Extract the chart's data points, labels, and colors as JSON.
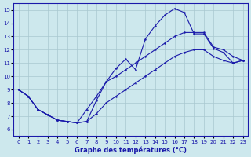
{
  "xlabel": "Graphe des températures (°C)",
  "background_color": "#cde8ed",
  "grid_color": "#a8c8d0",
  "line_color": "#1a1aaa",
  "xlim": [
    -0.5,
    23.5
  ],
  "ylim": [
    5.5,
    15.5
  ],
  "xticks": [
    0,
    1,
    2,
    3,
    4,
    5,
    6,
    7,
    8,
    9,
    10,
    11,
    12,
    13,
    14,
    15,
    16,
    17,
    18,
    19,
    20,
    21,
    22,
    23
  ],
  "yticks": [
    6,
    7,
    8,
    9,
    10,
    11,
    12,
    13,
    14,
    15
  ],
  "curve_jagged_x": [
    0,
    1,
    2,
    3,
    4,
    5,
    6,
    7,
    8,
    9,
    10,
    11,
    12,
    13,
    14,
    15,
    16,
    17,
    18,
    19,
    20,
    21,
    22,
    23
  ],
  "curve_jagged_y": [
    9.0,
    8.5,
    7.5,
    7.1,
    6.7,
    6.6,
    6.5,
    6.6,
    8.2,
    9.6,
    10.6,
    11.3,
    10.5,
    12.8,
    13.8,
    14.6,
    15.1,
    14.8,
    13.2,
    13.2,
    12.1,
    11.8,
    11.0,
    11.2
  ],
  "curve_upper_x": [
    0,
    1,
    2,
    3,
    4,
    5,
    6,
    7,
    8,
    9,
    10,
    11,
    12,
    13,
    14,
    15,
    16,
    17,
    18,
    19,
    20,
    21,
    22,
    23
  ],
  "curve_upper_y": [
    9.0,
    8.5,
    7.5,
    7.1,
    6.7,
    6.6,
    6.5,
    7.5,
    8.5,
    9.6,
    10.0,
    10.5,
    11.0,
    11.5,
    12.0,
    12.5,
    13.0,
    13.3,
    13.3,
    13.3,
    12.2,
    12.0,
    11.5,
    11.2
  ],
  "curve_lower_x": [
    0,
    1,
    2,
    3,
    4,
    5,
    6,
    7,
    8,
    9,
    10,
    11,
    12,
    13,
    14,
    15,
    16,
    17,
    18,
    19,
    20,
    21,
    22,
    23
  ],
  "curve_lower_y": [
    9.0,
    8.5,
    7.5,
    7.1,
    6.7,
    6.6,
    6.5,
    6.6,
    7.2,
    8.0,
    8.5,
    9.0,
    9.5,
    10.0,
    10.5,
    11.0,
    11.5,
    11.8,
    12.0,
    12.0,
    11.5,
    11.2,
    11.0,
    11.2
  ]
}
